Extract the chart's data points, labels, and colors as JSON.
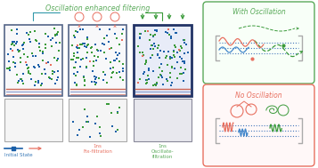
{
  "title": "Oscillation enhanced filtering",
  "title_color": "#5aaa5a",
  "title_fontsize": 5.8,
  "bg_color": "#ffffff",
  "box1_label": "Initial State",
  "box1_label_color": "#3a7ab8",
  "box2_label": "1ns\nFix-filtration",
  "box3_label": "1ns\nOscillate-\nfiltration",
  "box2_label_color": "#e87060",
  "box3_label_color": "#5aaa5a",
  "panel_right_top_title": "With Oscillation",
  "panel_right_bot_title": "No Oscillation",
  "panel_right_top_color": "#5aaa5a",
  "panel_right_bot_color": "#e87060",
  "dot_colors_blue": "#1a5fa8",
  "dot_colors_green": "#3a9a3a",
  "dot_colors_red": "#e87060",
  "membrane_color_red": "#cc6655",
  "membrane_color_blue": "#8899cc",
  "arrow_color_green": "#5aaa5a",
  "arrow_color_blue": "#4488cc",
  "seed": 42
}
